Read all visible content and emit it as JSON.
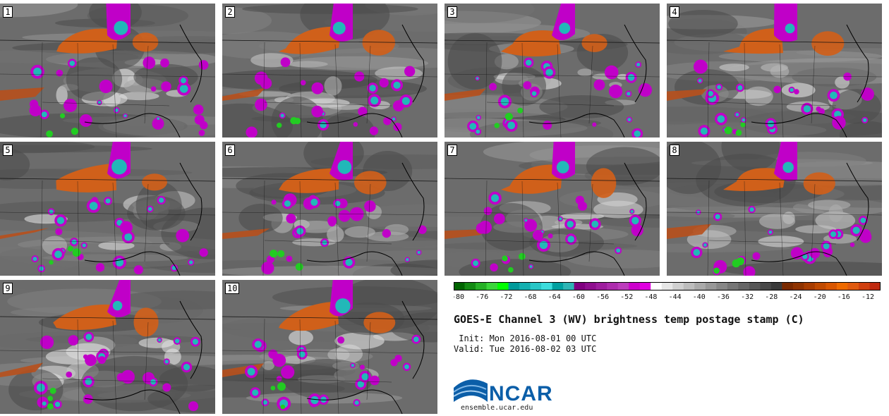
{
  "panels": [
    {
      "label": "1"
    },
    {
      "label": "2"
    },
    {
      "label": "3"
    },
    {
      "label": "4"
    },
    {
      "label": "5"
    },
    {
      "label": "6"
    },
    {
      "label": "7"
    },
    {
      "label": "8"
    },
    {
      "label": "9"
    },
    {
      "label": "10"
    }
  ],
  "colorbar": {
    "tick_labels": [
      "-80",
      "-76",
      "-72",
      "-68",
      "-64",
      "-60",
      "-56",
      "-52",
      "-48",
      "-44",
      "-40",
      "-36",
      "-32",
      "-28",
      "-24",
      "-20",
      "-16",
      "-12"
    ],
    "bins": [
      "#006400",
      "#138a13",
      "#26b026",
      "#3ad63a",
      "#00ff00",
      "#009a9a",
      "#14b0b0",
      "#28c6c6",
      "#3cdcdc",
      "#00a0a0",
      "#2fb5b5",
      "#800080",
      "#8f0f8f",
      "#9e1e9e",
      "#ad2dad",
      "#bc3cbc",
      "#cc00cc",
      "#e000e0",
      "#ffffff",
      "#e6e6e6",
      "#d0d0d0",
      "#bdbdbd",
      "#aaaaaa",
      "#989898",
      "#878787",
      "#767676",
      "#666666",
      "#575757",
      "#484848",
      "#3a3a3a",
      "#7a2a00",
      "#8f3300",
      "#a83d00",
      "#c04a00",
      "#d85600",
      "#ee6a00",
      "#e05a10",
      "#d04010",
      "#bf2a10"
    ]
  },
  "title": "GOES-E Channel 3 (WV) brightness temp postage stamp (C)",
  "init_line": " Init: Mon 2016-08-01 00 UTC",
  "valid_line": "Valid: Tue 2016-08-02 03 UTC",
  "logo": {
    "text": "NCAR",
    "url": "ensemble.ucar.edu",
    "color": "#0b5ea8"
  },
  "colors": {
    "orange": "#d0601a",
    "magenta": "#c000c8",
    "cyan": "#22b8b8",
    "green": "#22cc22"
  }
}
